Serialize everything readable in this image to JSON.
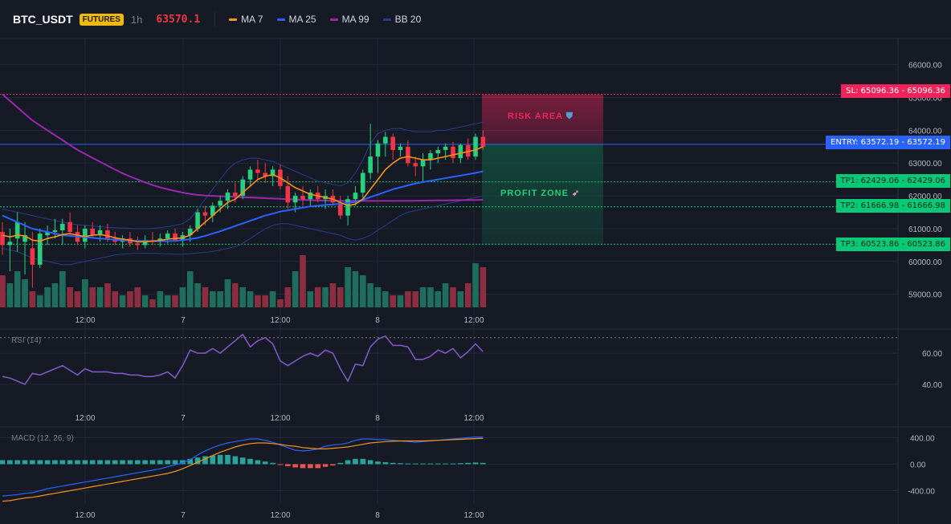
{
  "header": {
    "symbol": "BTC_USDT",
    "badge": "FUTURES",
    "timeframe": "1h",
    "last_price": "63570.1",
    "legend": [
      {
        "label": "MA 7",
        "color": "#f7931a"
      },
      {
        "label": "MA 25",
        "color": "#2962ff"
      },
      {
        "label": "MA 99",
        "color": "#9c27b0"
      },
      {
        "label": "BB 20",
        "color": "#2a3a8c"
      }
    ]
  },
  "rsi_panel": {
    "label": "RSI (14)"
  },
  "macd_panel": {
    "label": "MACD (12, 26, 9)"
  },
  "price_boxes": {
    "sl": "SL: 65096.36 - 65096.36",
    "entry": "ENTRY: 63572.19 - 63572.19",
    "tp1": "TP1: 62429.06 - 62429.06",
    "tp2": "TP2: 61666.98 - 61666.98",
    "tp3": "TP3: 60523.86 - 60523.86"
  },
  "zones": {
    "risk": "RISK AREA",
    "profit": "PROFIT ZONE",
    "risk_icon": "shield-icon",
    "profit_icon": "rocket-icon"
  },
  "chart_data": {
    "type": "candlestick",
    "price_axis": {
      "ticks": [
        "66000.00",
        "65000.00",
        "64000.00",
        "63000.00",
        "62000.00",
        "61000.00",
        "60000.00",
        "59000.00"
      ],
      "range": [
        58600,
        66800
      ]
    },
    "rsi_axis": {
      "ticks": [
        "60.00",
        "40.00"
      ],
      "range": [
        25,
        75
      ],
      "overbought": 70
    },
    "macd_axis": {
      "ticks": [
        "400.00",
        "0.00",
        "-400.00"
      ],
      "range": [
        -600,
        550
      ]
    },
    "time_ticks": [
      "12:00",
      "7",
      "12:00",
      "8",
      "12:00"
    ],
    "levels": {
      "sl": 65096.36,
      "entry": 63572.19,
      "tp1": 62429.06,
      "tp2": 61666.98,
      "tp3": 60523.86
    },
    "colors": {
      "up": "#26d07c",
      "down": "#f23645",
      "vol_up": "#1f6e5c",
      "vol_down": "#8c2e3f",
      "rsi": "#7e57c2",
      "macd": "#2962ff",
      "signal": "#f7931a",
      "hist_up": "#26a69a",
      "hist_down": "#ef5350",
      "sl": "#f0245a",
      "entry": "#2962ff",
      "tp": "#08c975"
    },
    "candles": [
      [
        60900,
        61200,
        60200,
        60500
      ],
      [
        60500,
        61000,
        59700,
        60600
      ],
      [
        60700,
        61500,
        60300,
        61200
      ],
      [
        60600,
        61200,
        59600,
        60800
      ],
      [
        60400,
        60900,
        59200,
        59900
      ],
      [
        59900,
        61000,
        59800,
        60850
      ],
      [
        60800,
        61100,
        60500,
        60900
      ],
      [
        60900,
        61300,
        60700,
        60950
      ],
      [
        60950,
        61300,
        60500,
        61150
      ],
      [
        61200,
        61500,
        60800,
        60900
      ],
      [
        60900,
        61100,
        60500,
        60600
      ],
      [
        60600,
        61100,
        60400,
        61000
      ],
      [
        61000,
        61200,
        60700,
        60800
      ],
      [
        60800,
        61100,
        60600,
        60950
      ],
      [
        60950,
        61150,
        60600,
        60700
      ],
      [
        60700,
        60900,
        60500,
        60600
      ],
      [
        60600,
        60800,
        60400,
        60700
      ],
      [
        60700,
        60900,
        60450,
        60550
      ],
      [
        60550,
        60750,
        60350,
        60500
      ],
      [
        60500,
        60800,
        60400,
        60650
      ],
      [
        60650,
        60900,
        60500,
        60600
      ],
      [
        60600,
        60850,
        60450,
        60700
      ],
      [
        60700,
        60950,
        60550,
        60850
      ],
      [
        60850,
        61000,
        60600,
        60650
      ],
      [
        60650,
        60900,
        60450,
        60800
      ],
      [
        60800,
        61100,
        60600,
        61000
      ],
      [
        61000,
        61600,
        60900,
        61500
      ],
      [
        61500,
        61700,
        61100,
        61400
      ],
      [
        61400,
        61800,
        61200,
        61700
      ],
      [
        61700,
        62000,
        61500,
        61850
      ],
      [
        61850,
        62200,
        61600,
        62100
      ],
      [
        62100,
        62400,
        61800,
        62000
      ],
      [
        62000,
        62600,
        61900,
        62500
      ],
      [
        62500,
        62900,
        62300,
        62800
      ],
      [
        62800,
        63100,
        62500,
        62700
      ],
      [
        62700,
        63000,
        62400,
        62600
      ],
      [
        62600,
        62900,
        62300,
        62800
      ],
      [
        62800,
        62950,
        62200,
        62300
      ],
      [
        62300,
        62600,
        61600,
        61800
      ],
      [
        61800,
        62100,
        61500,
        62000
      ],
      [
        62000,
        62300,
        61700,
        61900
      ],
      [
        61900,
        62200,
        61700,
        62100
      ],
      [
        62100,
        62300,
        61800,
        61900
      ],
      [
        61900,
        62200,
        61600,
        62000
      ],
      [
        62000,
        62200,
        61700,
        61800
      ],
      [
        61800,
        62000,
        61300,
        61400
      ],
      [
        61400,
        62000,
        61100,
        61900
      ],
      [
        61900,
        62300,
        61700,
        62100
      ],
      [
        62100,
        62800,
        61900,
        62700
      ],
      [
        62700,
        64200,
        62500,
        63200
      ],
      [
        63200,
        63700,
        62700,
        63600
      ],
      [
        63600,
        63950,
        63200,
        63800
      ],
      [
        63800,
        63900,
        63100,
        63400
      ],
      [
        63400,
        63600,
        63200,
        63500
      ],
      [
        63500,
        63700,
        62900,
        63000
      ],
      [
        63000,
        63200,
        62600,
        62900
      ],
      [
        62900,
        63300,
        62400,
        63100
      ],
      [
        63100,
        63400,
        62800,
        63300
      ],
      [
        63300,
        63500,
        63000,
        63400
      ],
      [
        63400,
        63600,
        63100,
        63500
      ],
      [
        63500,
        63650,
        63000,
        63150
      ],
      [
        63150,
        63600,
        63000,
        63550
      ],
      [
        63550,
        63750,
        63100,
        63200
      ],
      [
        63200,
        63900,
        63100,
        63800
      ],
      [
        63800,
        64000,
        63400,
        63500
      ]
    ],
    "volume": [
      8,
      6,
      9,
      7,
      4,
      3,
      5,
      6,
      9,
      5,
      4,
      7,
      5,
      5,
      6,
      4,
      3,
      4,
      5,
      3,
      2,
      4,
      3,
      3,
      5,
      9,
      6,
      5,
      4,
      4,
      7,
      6,
      5,
      4,
      3,
      3,
      4,
      2,
      5,
      9,
      13,
      4,
      5,
      5,
      6,
      5,
      10,
      9,
      8,
      6,
      5,
      4,
      3,
      3,
      4,
      4,
      5,
      5,
      4,
      6,
      5,
      4,
      6,
      11,
      10
    ],
    "ma7": [
      60800,
      60750,
      60800,
      60780,
      60650,
      60620,
      60700,
      60750,
      60820,
      60850,
      60800,
      60760,
      60800,
      60820,
      60780,
      60720,
      60680,
      60650,
      60600,
      60600,
      60620,
      60640,
      60680,
      60700,
      60720,
      60800,
      61000,
      61200,
      61400,
      61600,
      61800,
      61900,
      62100,
      62300,
      62500,
      62600,
      62650,
      62550,
      62400,
      62250,
      62150,
      62050,
      62000,
      61950,
      61900,
      61800,
      61700,
      61750,
      61900,
      62200,
      62500,
      62800,
      63000,
      63150,
      63200,
      63150,
      63100,
      63100,
      63150,
      63200,
      63250,
      63300,
      63350,
      63400,
      63500
    ],
    "ma25": [
      61400,
      61300,
      61200,
      61100,
      61000,
      60950,
      60900,
      60850,
      60800,
      60780,
      60760,
      60740,
      60720,
      60700,
      60680,
      60660,
      60650,
      60640,
      60630,
      60620,
      60620,
      60620,
      60620,
      60630,
      60650,
      60680,
      60720,
      60780,
      60850,
      60920,
      61000,
      61080,
      61160,
      61240,
      61320,
      61400,
      61460,
      61520,
      61560,
      61600,
      61640,
      61680,
      61700,
      61720,
      61740,
      61760,
      61780,
      61820,
      61880,
      61960,
      62040,
      62120,
      62200,
      62260,
      62320,
      62380,
      62420,
      62460,
      62500,
      62540,
      62580,
      62620,
      62660,
      62700,
      62750
    ],
    "ma99": [
      65100,
      64900,
      64700,
      64500,
      64300,
      64150,
      64000,
      63850,
      63700,
      63550,
      63400,
      63280,
      63160,
      63040,
      62920,
      62800,
      62690,
      62590,
      62500,
      62410,
      62330,
      62260,
      62200,
      62150,
      62100,
      62060,
      62030,
      62010,
      62000,
      61990,
      61980,
      61970,
      61960,
      61950,
      61940,
      61930,
      61920,
      61910,
      61900,
      61890,
      61880,
      61870,
      61860,
      61855,
      61850,
      61848,
      61846,
      61845,
      61845,
      61845,
      61845,
      61845,
      61846,
      61848,
      61850,
      61852,
      61855,
      61858,
      61860,
      61863,
      61866,
      61870,
      61873,
      61876,
      61880
    ],
    "bb_upper": [
      61600,
      61550,
      61500,
      61450,
      61400,
      61350,
      61300,
      61250,
      61200,
      61150,
      61120,
      61100,
      61080,
      61060,
      61040,
      61030,
      61020,
      61010,
      61000,
      61000,
      61010,
      61030,
      61060,
      61100,
      61150,
      61300,
      61600,
      61900,
      62200,
      62500,
      62800,
      63000,
      63100,
      63150,
      63150,
      63100,
      63050,
      62950,
      62850,
      62750,
      62650,
      62550,
      62450,
      62400,
      62350,
      62300,
      62400,
      62700,
      63100,
      63600,
      63900,
      64000,
      64050,
      64050,
      64000,
      63950,
      63950,
      63950,
      64000,
      64000,
      64050,
      64100,
      64150,
      64200,
      64250
    ],
    "bb_lower": [
      60400,
      60350,
      60300,
      60200,
      60100,
      60050,
      60000,
      59950,
      59900,
      59900,
      59950,
      60000,
      60050,
      60100,
      60150,
      60200,
      60220,
      60240,
      60250,
      60250,
      60250,
      60240,
      60230,
      60220,
      60220,
      60240,
      60260,
      60280,
      60300,
      60350,
      60400,
      60450,
      60550,
      60700,
      60850,
      61000,
      61100,
      61150,
      61150,
      61100,
      61050,
      61000,
      60950,
      60900,
      60850,
      60800,
      60700,
      60650,
      60700,
      60800,
      60950,
      61100,
      61250,
      61400,
      61500,
      61550,
      61600,
      61650,
      61700,
      61750,
      61800,
      61850,
      61900,
      61950,
      62000
    ],
    "rsi": [
      45,
      44,
      42,
      40,
      47,
      46,
      48,
      50,
      52,
      49,
      46,
      50,
      48,
      48,
      48,
      47,
      47,
      46,
      46,
      45,
      45,
      46,
      48,
      44,
      52,
      62,
      60,
      60,
      63,
      60,
      64,
      68,
      72,
      64,
      68,
      70,
      66,
      55,
      52,
      55,
      58,
      60,
      58,
      62,
      60,
      50,
      42,
      53,
      52,
      64,
      69,
      71,
      65,
      65,
      64,
      56,
      56,
      58,
      62,
      60,
      63,
      57,
      61,
      66,
      61
    ],
    "macd": [
      -480,
      -470,
      -460,
      -440,
      -430,
      -400,
      -370,
      -350,
      -330,
      -310,
      -290,
      -270,
      -250,
      -230,
      -210,
      -190,
      -170,
      -150,
      -130,
      -110,
      -90,
      -70,
      -40,
      -10,
      20,
      70,
      140,
      200,
      250,
      290,
      320,
      340,
      360,
      380,
      380,
      360,
      330,
      290,
      250,
      210,
      200,
      210,
      230,
      270,
      290,
      300,
      320,
      360,
      380,
      380,
      370,
      370,
      360,
      350,
      340,
      330,
      340,
      350,
      360,
      370,
      380,
      390,
      400,
      410,
      410
    ],
    "signal": [
      -560,
      -550,
      -530,
      -510,
      -500,
      -480,
      -460,
      -440,
      -420,
      -400,
      -380,
      -360,
      -340,
      -320,
      -300,
      -280,
      -260,
      -240,
      -220,
      -200,
      -180,
      -160,
      -140,
      -110,
      -70,
      -20,
      30,
      80,
      130,
      180,
      220,
      260,
      290,
      310,
      320,
      320,
      310,
      300,
      280,
      270,
      250,
      240,
      230,
      230,
      240,
      250,
      260,
      280,
      300,
      320,
      330,
      340,
      345,
      350,
      350,
      350,
      350,
      355,
      360,
      365,
      370,
      375,
      380,
      385,
      390
    ],
    "hist": [
      60,
      60,
      60,
      60,
      60,
      60,
      60,
      60,
      60,
      60,
      60,
      60,
      60,
      60,
      60,
      60,
      60,
      60,
      60,
      60,
      60,
      60,
      60,
      60,
      60,
      80,
      100,
      120,
      130,
      140,
      140,
      120,
      100,
      80,
      60,
      40,
      20,
      -10,
      -30,
      -50,
      -60,
      -60,
      -60,
      -40,
      -20,
      20,
      60,
      80,
      80,
      60,
      40,
      30,
      20,
      15,
      10,
      10,
      10,
      10,
      10,
      10,
      10,
      15,
      20,
      25,
      20
    ]
  }
}
